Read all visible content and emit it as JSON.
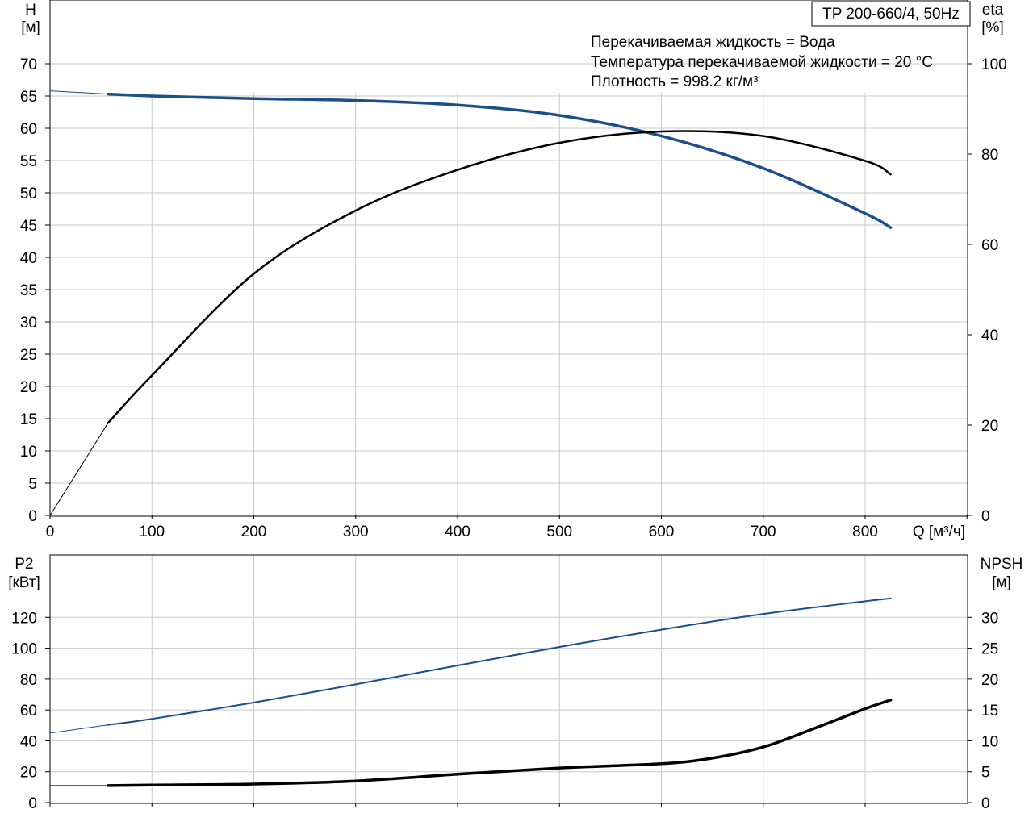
{
  "chart_data": [
    {
      "type": "line",
      "title": "TP 200-660/4, 50Hz",
      "annotations": [
        "Перекачиваемая жидкость = Вода",
        "Температура перекачиваемой жидкости = 20 °C",
        "Плотность = 998.2 кг/м³"
      ],
      "xlabel": "Q [м³/ч]",
      "xlim": [
        0,
        900
      ],
      "x_ticks": [
        0,
        100,
        200,
        300,
        400,
        500,
        600,
        700,
        800
      ],
      "y_left": {
        "label_line1": "H",
        "label_line2": "[м]",
        "lim": [
          0,
          70
        ],
        "ticks": [
          0,
          5,
          10,
          15,
          20,
          25,
          30,
          35,
          40,
          45,
          50,
          55,
          60,
          65,
          70
        ]
      },
      "y_right": {
        "label_line1": "eta",
        "label_line2": "[%]",
        "lim": [
          0,
          100
        ],
        "ticks": [
          0,
          20,
          40,
          60,
          80,
          100
        ]
      },
      "grid": true,
      "series": [
        {
          "axis": "left",
          "color": "#1a4f8a",
          "x": [
            0,
            57,
            100,
            200,
            300,
            400,
            500,
            600,
            700,
            800,
            825
          ],
          "y": [
            65.8,
            65.3,
            65.0,
            64.6,
            64.3,
            63.6,
            62.0,
            58.8,
            53.8,
            46.8,
            44.6
          ]
        },
        {
          "axis": "right",
          "color": "#000000",
          "x": [
            0,
            57,
            100,
            200,
            300,
            400,
            500,
            600,
            700,
            800,
            825
          ],
          "y": [
            0,
            20.5,
            31,
            53.5,
            67.5,
            76.5,
            82.5,
            85,
            84,
            78.5,
            75.5
          ]
        }
      ]
    },
    {
      "type": "line",
      "xlim": [
        0,
        900
      ],
      "x_ticks": [
        100,
        200,
        300,
        400,
        500,
        600,
        700,
        800
      ],
      "y_left": {
        "label_line1": "P2",
        "label_line2": "[кВт]",
        "lim": [
          0,
          140
        ],
        "ticks": [
          0,
          20,
          40,
          60,
          80,
          100,
          120
        ]
      },
      "y_right": {
        "label_line1": "NPSH",
        "label_line2": "[м]",
        "lim": [
          0,
          35
        ],
        "ticks": [
          0,
          5,
          10,
          15,
          20,
          25,
          30
        ]
      },
      "grid": true,
      "series": [
        {
          "axis": "left",
          "color": "#1a4f8a",
          "x": [
            0,
            57,
            100,
            200,
            300,
            400,
            500,
            600,
            700,
            800,
            825
          ],
          "y": [
            45,
            50.3,
            54.2,
            64.8,
            76.6,
            88.8,
            100.8,
            112.0,
            122.2,
            130.4,
            132.2
          ]
        },
        {
          "axis": "right",
          "color": "#000000",
          "x": [
            0,
            57,
            100,
            200,
            300,
            400,
            500,
            600,
            650,
            700,
            750,
            800,
            825
          ],
          "y": [
            2.75,
            2.75,
            2.85,
            3.0,
            3.5,
            4.6,
            5.6,
            6.3,
            7.2,
            9.0,
            12.0,
            15.2,
            16.6
          ]
        }
      ]
    }
  ]
}
